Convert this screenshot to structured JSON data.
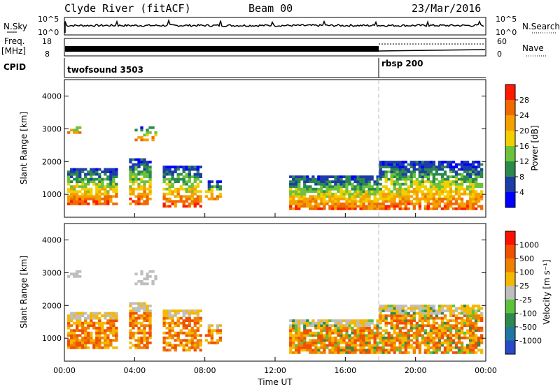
{
  "header": {
    "station": "Clyde River (fitACF)",
    "beam": "Beam 00",
    "date": "23/Mar/2016"
  },
  "strip_panels": {
    "nsky_label": "N.Sky",
    "nsearch_label": "N.Search",
    "nsky_ticks": [
      "10^5",
      "10^0"
    ],
    "nsearch_ticks": [
      "10^5",
      "10^0"
    ],
    "freq_label_1": "Freq.",
    "freq_label_2": "[MHz]",
    "freq_ticks": [
      "18",
      "8"
    ],
    "nave_label": "Nave",
    "nave_ticks": [
      "60",
      "0"
    ],
    "cpid_label": "CPID",
    "cpid_segments": [
      {
        "name": "twofsound 3503",
        "start_hour": 0
      },
      {
        "name": "rbsp 200",
        "start_hour": 18
      }
    ]
  },
  "chart_data": [
    {
      "type": "heatmap",
      "name": "power",
      "ylabel": "Slant Range [km]",
      "xlabel": "",
      "xlim": [
        0,
        24
      ],
      "ylim": [
        300,
        4500
      ],
      "y_ticks": [
        "1000",
        "2000",
        "3000",
        "4000"
      ],
      "colorbar": {
        "label": "Power [dB]",
        "ticks": [
          "4",
          "8",
          "12",
          "16",
          "20",
          "24",
          "28"
        ],
        "colors": [
          "#0000ff",
          "#1e3ca8",
          "#2a8a4c",
          "#6cc23c",
          "#f2d000",
          "#f5a000",
          "#f06a00",
          "#ff1a00"
        ]
      }
    },
    {
      "type": "heatmap",
      "name": "velocity",
      "ylabel": "Slant Range [km]",
      "xlabel": "Time UT",
      "xlim": [
        0,
        24
      ],
      "ylim": [
        300,
        4500
      ],
      "x_ticks": [
        "00:00",
        "04:00",
        "08:00",
        "12:00",
        "16:00",
        "20:00",
        "00:00"
      ],
      "y_ticks": [
        "1000",
        "2000",
        "3000",
        "4000"
      ],
      "colorbar": {
        "label": "Velocity [m s⁻¹]",
        "ticks": [
          "1000",
          "500",
          "100",
          "25",
          "-25",
          "-100",
          "-500",
          "-1000"
        ],
        "colors": [
          "#2a49c8",
          "#1e78a0",
          "#2e8a4c",
          "#5cc23c",
          "#bebebe",
          "#f5b800",
          "#f08000",
          "#f05000",
          "#ff1000"
        ]
      }
    }
  ]
}
